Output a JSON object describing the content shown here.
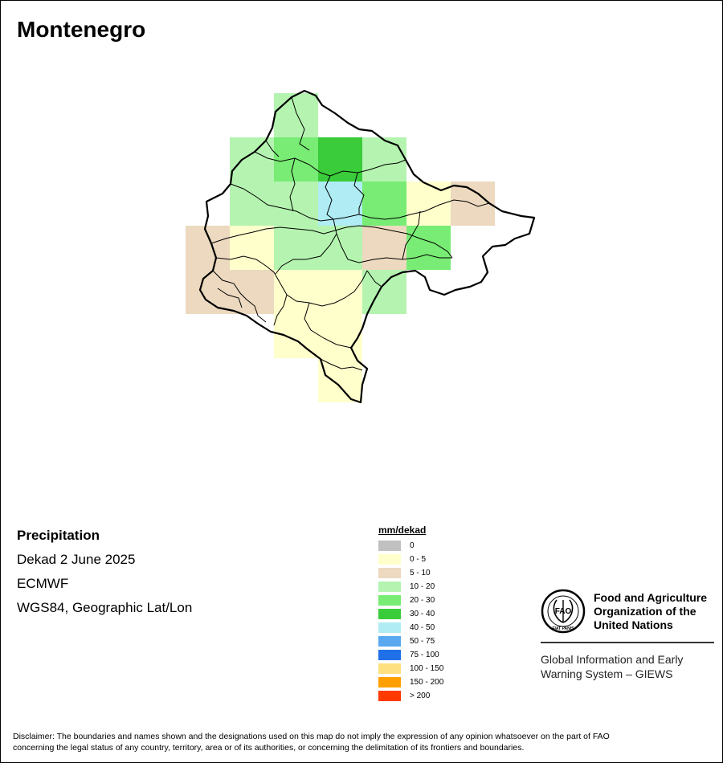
{
  "map": {
    "title": "Montenegro",
    "variable": "Precipitation",
    "period": "Dekad 2 June 2025",
    "source": "ECMWF",
    "projection": "WGS84, Geographic Lat/Lon",
    "colors": {
      "none": "#c0c0c0",
      "c0_5": "#ffffcc",
      "c5_10": "#ecd9bf",
      "c10_20": "#b4f4b0",
      "c20_30": "#78ec74",
      "c30_40": "#3acc3a",
      "c40_50": "#b0ecf4",
      "border": "#000000"
    }
  },
  "legend": {
    "title": "mm/dekad",
    "items": [
      {
        "label": "0",
        "color": "#c0c0c0"
      },
      {
        "label": "0 - 5",
        "color": "#ffffcc"
      },
      {
        "label": "5 - 10",
        "color": "#ecd9bf"
      },
      {
        "label": "10 - 20",
        "color": "#b4f4b0"
      },
      {
        "label": "20 - 30",
        "color": "#78ec74"
      },
      {
        "label": "30 - 40",
        "color": "#3acc3a"
      },
      {
        "label": "40 - 50",
        "color": "#b0ecf4"
      },
      {
        "label": "50 - 75",
        "color": "#5aa8f0"
      },
      {
        "label": "75 - 100",
        "color": "#2070e8"
      },
      {
        "label": "100 - 150",
        "color": "#ffe080"
      },
      {
        "label": "150 - 200",
        "color": "#ffa000"
      },
      {
        "label": "> 200",
        "color": "#ff3a00"
      }
    ]
  },
  "fao": {
    "org_line1": "Food and Agriculture",
    "org_line2": "Organization of the",
    "org_line3": "United Nations",
    "giews_line1": "Global Information and Early",
    "giews_line2": "Warning System – GIEWS",
    "emblem_letters": "FAO",
    "emblem_motto": "FIAT PANIS"
  },
  "disclaimer": {
    "line1": "Disclaimer: The boundaries and names shown and the designations used on this map do not imply the expression of any opinion whatsoever on the part of FAO",
    "line2": "concerning the legal status of any country, territory, area or of its authorities, or concerning the delimitation of its frontiers and boundaries."
  }
}
